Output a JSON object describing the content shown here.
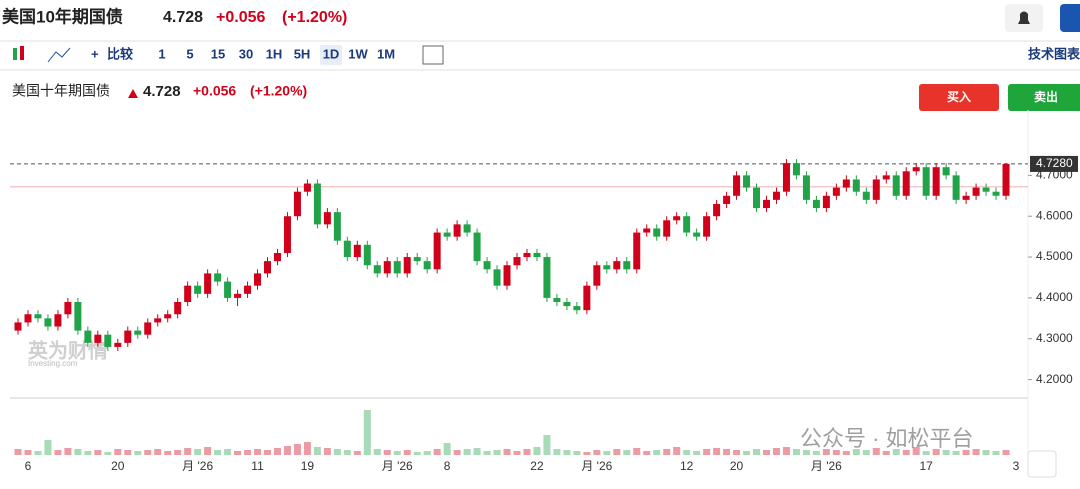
{
  "header": {
    "title": "美国10年期国债",
    "price": "4.728",
    "change": "+0.056",
    "change_pct": "(+1.20%)"
  },
  "toolbar": {
    "compare": "比较",
    "intervals": [
      "1",
      "5",
      "15",
      "30",
      "1H",
      "5H",
      "1D",
      "1W",
      "1M"
    ],
    "active_interval": "1D",
    "tech_chart": "技术图表"
  },
  "chart_header": {
    "name": "美国十年期国债",
    "price": "4.728",
    "change": "+0.056",
    "change_pct": "(+1.20%)",
    "buy": "买入",
    "sell": "卖出"
  },
  "watermark": "公众号 · 如松平台",
  "logo": {
    "cn": "英为财情",
    "en": "Investing.com"
  },
  "chart_data": {
    "type": "candlestick",
    "up_color": "#d0021b",
    "down_color": "#22a34a",
    "ylim": [
      4.155,
      4.86
    ],
    "yticks": [
      {
        "value": 4.2,
        "label": "4.2000"
      },
      {
        "value": 4.3,
        "label": "4.3000"
      },
      {
        "value": 4.4,
        "label": "4.4000"
      },
      {
        "value": 4.5,
        "label": "4.5000"
      },
      {
        "value": 4.6,
        "label": "4.6000"
      },
      {
        "value": 4.7,
        "label": "4.7000"
      }
    ],
    "last_price": {
      "value": 4.728,
      "label": "4.7280"
    },
    "reference_line": 4.672,
    "x_labels": [
      {
        "index": 1,
        "label": "6"
      },
      {
        "index": 10,
        "label": "20"
      },
      {
        "index": 18,
        "label": "月 '26"
      },
      {
        "index": 24,
        "label": "11"
      },
      {
        "index": 29,
        "label": "19"
      },
      {
        "index": 38,
        "label": "月 '26"
      },
      {
        "index": 43,
        "label": "8"
      },
      {
        "index": 52,
        "label": "22"
      },
      {
        "index": 58,
        "label": "月 '26"
      },
      {
        "index": 67,
        "label": "12"
      },
      {
        "index": 72,
        "label": "20"
      },
      {
        "index": 81,
        "label": "月 '26"
      },
      {
        "index": 91,
        "label": "17"
      },
      {
        "index": 100,
        "label": "3"
      }
    ],
    "ohlc": [
      [
        4.32,
        4.35,
        4.31,
        4.34
      ],
      [
        4.34,
        4.37,
        4.33,
        4.36
      ],
      [
        4.36,
        4.37,
        4.34,
        4.35
      ],
      [
        4.35,
        4.36,
        4.32,
        4.33
      ],
      [
        4.33,
        4.37,
        4.32,
        4.36
      ],
      [
        4.36,
        4.4,
        4.35,
        4.39
      ],
      [
        4.39,
        4.4,
        4.31,
        4.32
      ],
      [
        4.32,
        4.33,
        4.28,
        4.29
      ],
      [
        4.29,
        4.32,
        4.28,
        4.31
      ],
      [
        4.31,
        4.32,
        4.27,
        4.28
      ],
      [
        4.28,
        4.3,
        4.27,
        4.29
      ],
      [
        4.29,
        4.33,
        4.28,
        4.32
      ],
      [
        4.32,
        4.33,
        4.3,
        4.31
      ],
      [
        4.31,
        4.35,
        4.3,
        4.34
      ],
      [
        4.34,
        4.36,
        4.33,
        4.35
      ],
      [
        4.35,
        4.37,
        4.34,
        4.36
      ],
      [
        4.36,
        4.4,
        4.35,
        4.39
      ],
      [
        4.39,
        4.44,
        4.38,
        4.43
      ],
      [
        4.43,
        4.44,
        4.4,
        4.41
      ],
      [
        4.41,
        4.47,
        4.4,
        4.46
      ],
      [
        4.46,
        4.47,
        4.43,
        4.44
      ],
      [
        4.44,
        4.45,
        4.39,
        4.4
      ],
      [
        4.4,
        4.42,
        4.38,
        4.41
      ],
      [
        4.41,
        4.44,
        4.4,
        4.43
      ],
      [
        4.43,
        4.47,
        4.42,
        4.46
      ],
      [
        4.46,
        4.5,
        4.45,
        4.49
      ],
      [
        4.49,
        4.52,
        4.48,
        4.51
      ],
      [
        4.51,
        4.61,
        4.5,
        4.6
      ],
      [
        4.6,
        4.67,
        4.59,
        4.66
      ],
      [
        4.66,
        4.69,
        4.65,
        4.68
      ],
      [
        4.68,
        4.69,
        4.57,
        4.58
      ],
      [
        4.58,
        4.62,
        4.57,
        4.61
      ],
      [
        4.61,
        4.62,
        4.53,
        4.54
      ],
      [
        4.54,
        4.55,
        4.49,
        4.5
      ],
      [
        4.5,
        4.54,
        4.49,
        4.53
      ],
      [
        4.53,
        4.54,
        4.47,
        4.48
      ],
      [
        4.48,
        4.49,
        4.45,
        4.46
      ],
      [
        4.46,
        4.5,
        4.45,
        4.49
      ],
      [
        4.49,
        4.5,
        4.45,
        4.46
      ],
      [
        4.46,
        4.51,
        4.45,
        4.5
      ],
      [
        4.5,
        4.51,
        4.48,
        4.49
      ],
      [
        4.49,
        4.5,
        4.46,
        4.47
      ],
      [
        4.47,
        4.57,
        4.46,
        4.56
      ],
      [
        4.56,
        4.57,
        4.54,
        4.55
      ],
      [
        4.55,
        4.59,
        4.54,
        4.58
      ],
      [
        4.58,
        4.59,
        4.55,
        4.56
      ],
      [
        4.56,
        4.57,
        4.48,
        4.49
      ],
      [
        4.49,
        4.5,
        4.46,
        4.47
      ],
      [
        4.47,
        4.48,
        4.42,
        4.43
      ],
      [
        4.43,
        4.49,
        4.42,
        4.48
      ],
      [
        4.48,
        4.51,
        4.47,
        4.5
      ],
      [
        4.5,
        4.52,
        4.49,
        4.51
      ],
      [
        4.51,
        4.52,
        4.49,
        4.5
      ],
      [
        4.5,
        4.51,
        4.39,
        4.4
      ],
      [
        4.4,
        4.41,
        4.38,
        4.39
      ],
      [
        4.39,
        4.4,
        4.37,
        4.38
      ],
      [
        4.38,
        4.39,
        4.36,
        4.37
      ],
      [
        4.37,
        4.44,
        4.36,
        4.43
      ],
      [
        4.43,
        4.49,
        4.42,
        4.48
      ],
      [
        4.48,
        4.49,
        4.46,
        4.47
      ],
      [
        4.47,
        4.5,
        4.46,
        4.49
      ],
      [
        4.49,
        4.5,
        4.46,
        4.47
      ],
      [
        4.47,
        4.57,
        4.46,
        4.56
      ],
      [
        4.56,
        4.58,
        4.55,
        4.57
      ],
      [
        4.57,
        4.58,
        4.54,
        4.55
      ],
      [
        4.55,
        4.6,
        4.54,
        4.59
      ],
      [
        4.59,
        4.61,
        4.58,
        4.6
      ],
      [
        4.6,
        4.61,
        4.55,
        4.56
      ],
      [
        4.56,
        4.57,
        4.54,
        4.55
      ],
      [
        4.55,
        4.61,
        4.54,
        4.6
      ],
      [
        4.6,
        4.64,
        4.59,
        4.63
      ],
      [
        4.63,
        4.66,
        4.62,
        4.65
      ],
      [
        4.65,
        4.71,
        4.64,
        4.7
      ],
      [
        4.7,
        4.71,
        4.66,
        4.67
      ],
      [
        4.67,
        4.68,
        4.61,
        4.62
      ],
      [
        4.62,
        4.65,
        4.61,
        4.64
      ],
      [
        4.64,
        4.67,
        4.63,
        4.66
      ],
      [
        4.66,
        4.74,
        4.65,
        4.73
      ],
      [
        4.73,
        4.74,
        4.69,
        4.7
      ],
      [
        4.7,
        4.71,
        4.63,
        4.64
      ],
      [
        4.64,
        4.65,
        4.61,
        4.62
      ],
      [
        4.62,
        4.66,
        4.61,
        4.65
      ],
      [
        4.65,
        4.68,
        4.64,
        4.67
      ],
      [
        4.67,
        4.7,
        4.66,
        4.69
      ],
      [
        4.69,
        4.7,
        4.65,
        4.66
      ],
      [
        4.66,
        4.67,
        4.63,
        4.64
      ],
      [
        4.64,
        4.7,
        4.63,
        4.69
      ],
      [
        4.69,
        4.71,
        4.68,
        4.7
      ],
      [
        4.7,
        4.71,
        4.64,
        4.65
      ],
      [
        4.65,
        4.72,
        4.64,
        4.71
      ],
      [
        4.71,
        4.73,
        4.7,
        4.72
      ],
      [
        4.72,
        4.73,
        4.64,
        4.65
      ],
      [
        4.65,
        4.73,
        4.64,
        4.72
      ],
      [
        4.72,
        4.73,
        4.69,
        4.7
      ],
      [
        4.7,
        4.71,
        4.63,
        4.64
      ],
      [
        4.64,
        4.66,
        4.63,
        4.65
      ],
      [
        4.65,
        4.68,
        4.64,
        4.67
      ],
      [
        4.67,
        4.68,
        4.65,
        4.66
      ],
      [
        4.66,
        4.67,
        4.64,
        4.65
      ],
      [
        4.65,
        4.73,
        4.64,
        4.728
      ]
    ],
    "volume": [
      6,
      5,
      4,
      15,
      5,
      7,
      6,
      4,
      5,
      3,
      6,
      5,
      4,
      5,
      6,
      4,
      5,
      7,
      6,
      8,
      5,
      6,
      4,
      5,
      6,
      5,
      7,
      9,
      11,
      13,
      8,
      7,
      6,
      5,
      4,
      45,
      6,
      5,
      4,
      5,
      3,
      4,
      6,
      12,
      5,
      6,
      7,
      4,
      5,
      6,
      4,
      6,
      8,
      20,
      6,
      5,
      4,
      3,
      5,
      4,
      6,
      5,
      7,
      4,
      5,
      6,
      8,
      5,
      4,
      6,
      7,
      6,
      5,
      4,
      6,
      5,
      7,
      8,
      6,
      5,
      4,
      6,
      5,
      4,
      6,
      5,
      7,
      4,
      6,
      5,
      8,
      4,
      6,
      5,
      4,
      5,
      6,
      5,
      4,
      5
    ],
    "volume_lim": [
      0,
      50
    ]
  }
}
